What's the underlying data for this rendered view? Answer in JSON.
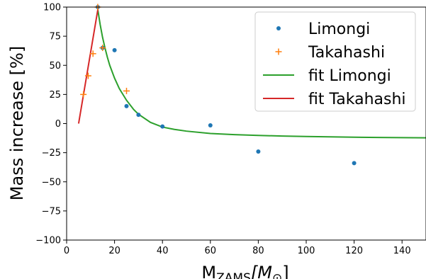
{
  "chart_data": {
    "type": "scatter",
    "xlabel": "M_ZAMS[M_⊙]",
    "xlabel_main": "M",
    "xlabel_sub": "ZAMS",
    "xlabel_bracket": "[M",
    "xlabel_sun": "⊙",
    "xlabel_close": "]",
    "ylabel": "Mass increase [%]",
    "xlim": [
      0,
      150
    ],
    "ylim": [
      -100,
      100
    ],
    "xticks": [
      0,
      20,
      40,
      60,
      80,
      100,
      120,
      140
    ],
    "yticks": [
      -100,
      -75,
      -50,
      -25,
      0,
      25,
      50,
      75,
      100
    ],
    "grid": false,
    "legend_position": "top-right",
    "series": [
      {
        "name": "Limongi",
        "kind": "points",
        "marker": "dot",
        "color": "#1f77b4",
        "x": [
          13,
          15,
          20,
          25,
          30,
          40,
          60,
          80,
          120
        ],
        "y": [
          100,
          65,
          63,
          15,
          7.5,
          -2.5,
          -1.5,
          -24,
          -34
        ]
      },
      {
        "name": "Takahashi",
        "kind": "points",
        "marker": "plus",
        "color": "#ff7f0e",
        "x": [
          7,
          9,
          11,
          13,
          15,
          25
        ],
        "y": [
          25,
          41,
          60,
          100,
          65,
          28
        ]
      },
      {
        "name": "fit Limongi",
        "kind": "line",
        "color": "#2ca02c",
        "x": [
          13,
          14,
          15,
          16,
          17,
          18,
          20,
          22,
          25,
          28,
          30,
          35,
          40,
          45,
          50,
          60,
          70,
          80,
          90,
          100,
          110,
          120,
          130,
          140,
          150
        ],
        "y": [
          98,
          85,
          74,
          65,
          57,
          50,
          39,
          30,
          20,
          12,
          8,
          1,
          -3,
          -5,
          -6.5,
          -8.5,
          -9.5,
          -10.2,
          -10.7,
          -11.1,
          -11.4,
          -11.7,
          -11.9,
          -12.1,
          -12.2
        ]
      },
      {
        "name": "fit Takahashi",
        "kind": "line",
        "color": "#d62728",
        "x": [
          5,
          13.2
        ],
        "y": [
          0,
          100
        ]
      }
    ]
  }
}
